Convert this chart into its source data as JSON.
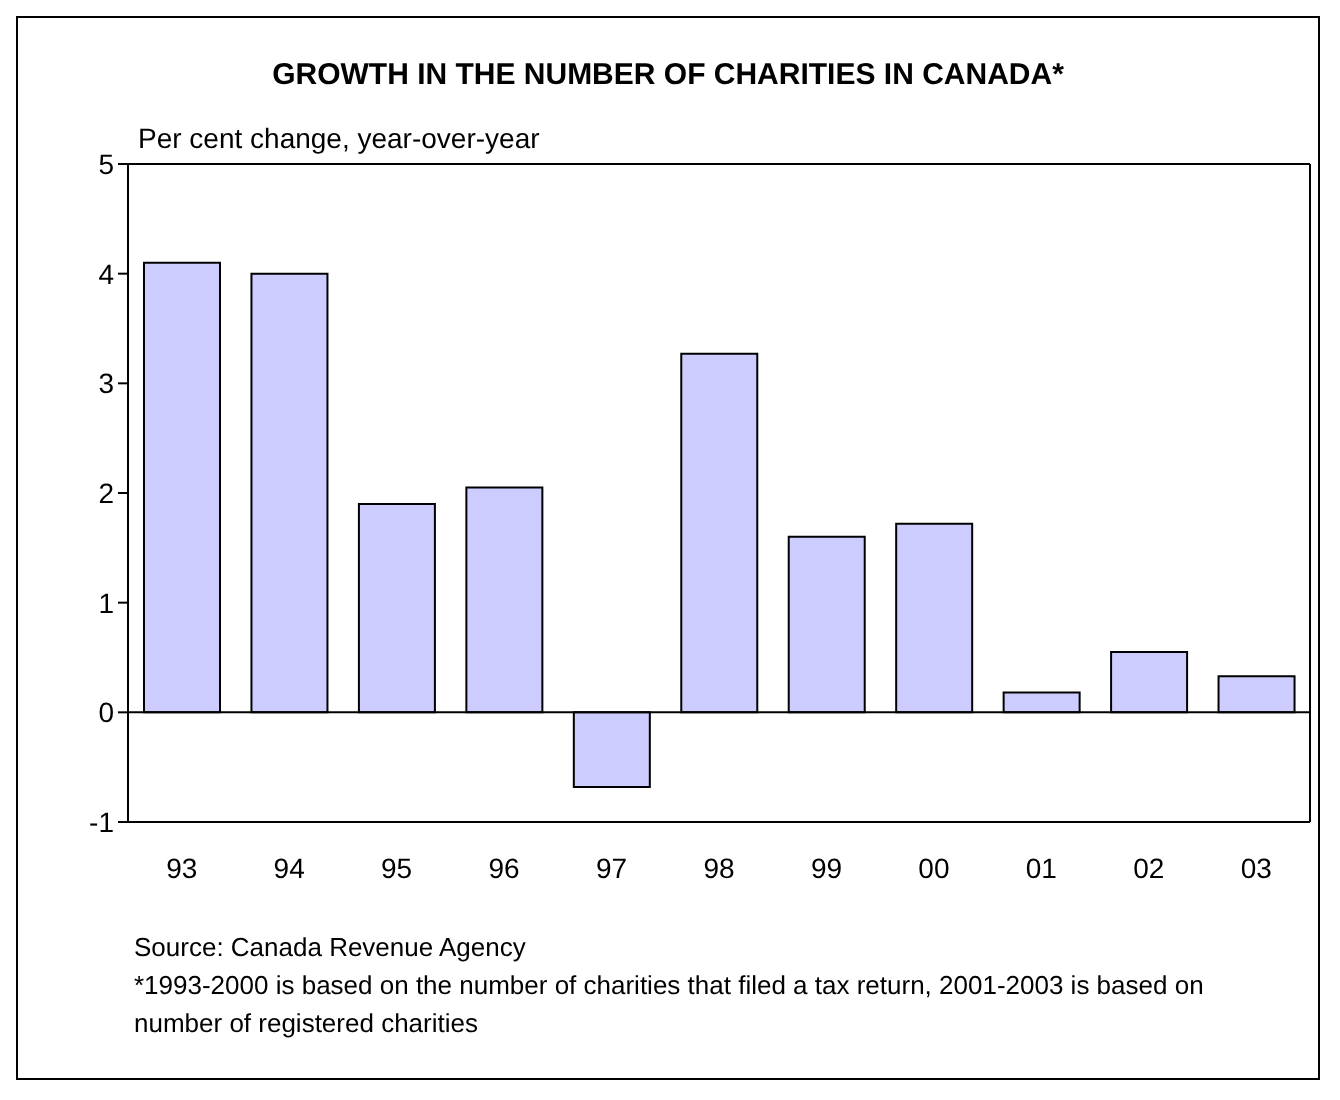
{
  "chart_data": {
    "type": "bar",
    "title": "GROWTH IN THE NUMBER OF CHARITIES IN CANADA*",
    "ylabel": "Per cent change, year-over-year",
    "categories": [
      "93",
      "94",
      "95",
      "96",
      "97",
      "98",
      "99",
      "00",
      "01",
      "02",
      "03"
    ],
    "values": [
      4.1,
      4.0,
      1.9,
      2.05,
      -0.68,
      3.27,
      1.6,
      1.72,
      0.18,
      0.55,
      0.33
    ],
    "color": "#ccccff",
    "ylim": [
      -1,
      5
    ],
    "yticks": [
      -1,
      0,
      1,
      2,
      3,
      4,
      5
    ],
    "legend": false,
    "annotations": [
      "Source: Canada Revenue Agency",
      "*1993-2000 is based on the number of charities that filed a tax return, 2001-2003 is based on number of registered charities"
    ]
  }
}
